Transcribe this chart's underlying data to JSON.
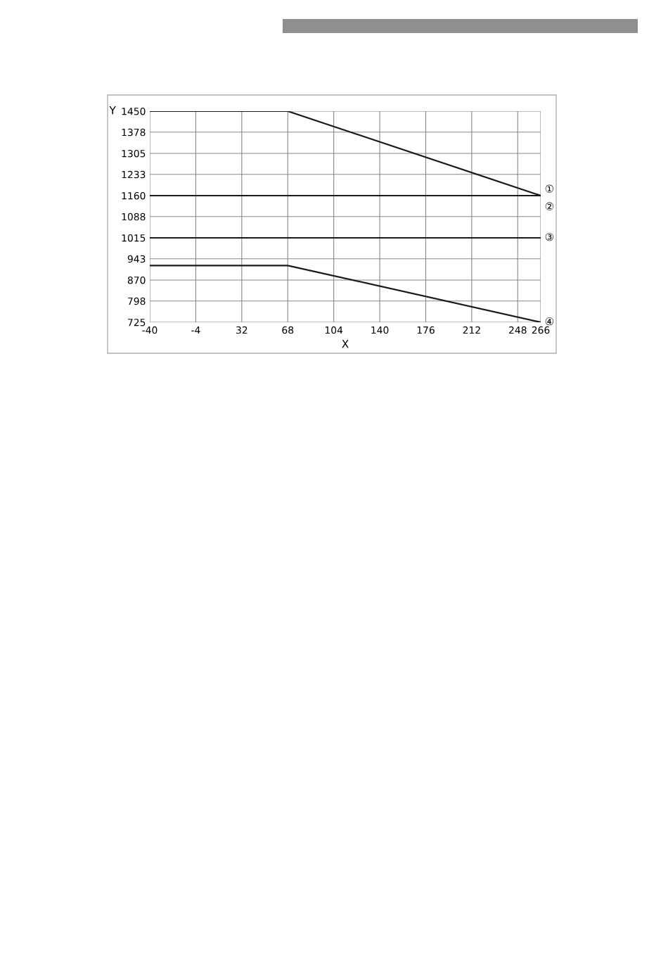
{
  "chart_data": {
    "type": "line",
    "xlabel": "X",
    "ylabel": "Y",
    "xlim": [
      -40,
      266
    ],
    "xticks": [
      -40,
      -4,
      32,
      68,
      104,
      140,
      176,
      212,
      248,
      266
    ],
    "ylim": [
      725,
      1450
    ],
    "yticks": [
      725,
      798,
      870,
      943,
      1015,
      1088,
      1160,
      1233,
      1305,
      1378,
      1450
    ],
    "grid": true,
    "legend": false,
    "marker": "none",
    "line_style": "solid",
    "series": [
      {
        "name": "①",
        "color": "#1a1a1a",
        "x": [
          -40,
          68,
          266
        ],
        "values": [
          1450,
          1450,
          1160
        ]
      },
      {
        "name": "②",
        "color": "#1a1a1a",
        "x": [
          -40,
          266
        ],
        "values": [
          1160,
          1160
        ]
      },
      {
        "name": "③",
        "color": "#1a1a1a",
        "x": [
          -40,
          266
        ],
        "values": [
          1015,
          1015
        ]
      },
      {
        "name": "④",
        "color": "#1a1a1a",
        "x": [
          -40,
          68,
          266
        ],
        "values": [
          920,
          920,
          725
        ]
      }
    ]
  }
}
